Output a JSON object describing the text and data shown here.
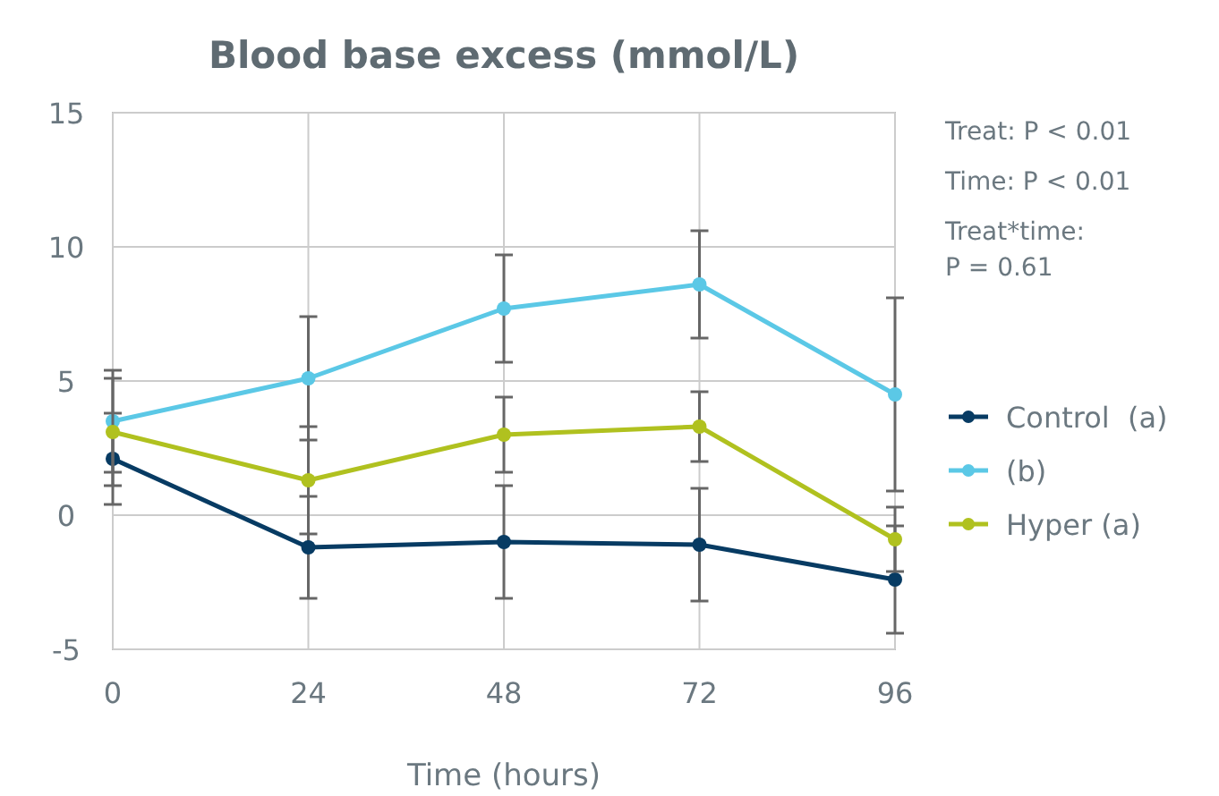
{
  "chart_data": {
    "type": "line",
    "title": "Blood base excess (mmol/L)",
    "xlabel": "Time (hours)",
    "x": [
      0,
      24,
      48,
      72,
      96
    ],
    "series": [
      {
        "name": "Control  (a)",
        "color": "#073b63",
        "values": [
          2.1,
          -1.2,
          -1.0,
          -1.1,
          -2.4
        ],
        "errors": [
          1.7,
          1.9,
          2.1,
          2.1,
          2.0
        ]
      },
      {
        "name": "(b)",
        "color": "#5bc8e6",
        "values": [
          3.5,
          5.1,
          7.7,
          8.6,
          4.5
        ],
        "errors": [
          1.9,
          2.3,
          2.0,
          2.0,
          3.6
        ]
      },
      {
        "name": "Hyper (a)",
        "color": "#b0c11f",
        "values": [
          3.1,
          1.3,
          3.0,
          3.3,
          -0.9
        ],
        "errors": [
          2.0,
          2.0,
          1.4,
          1.3,
          1.2
        ]
      }
    ],
    "xlim": [
      0,
      96
    ],
    "xticks": [
      0,
      24,
      48,
      72,
      96
    ],
    "ylim": [
      -5,
      15
    ],
    "yticks": [
      -5,
      0,
      5,
      10,
      15
    ],
    "grid": true,
    "legend": "right",
    "marker": "circle",
    "line_style": "solid",
    "annotations": [
      "Treat: P < 0.01",
      "Time: P < 0.01",
      "Treat*time:\nP = 0.61"
    ]
  }
}
